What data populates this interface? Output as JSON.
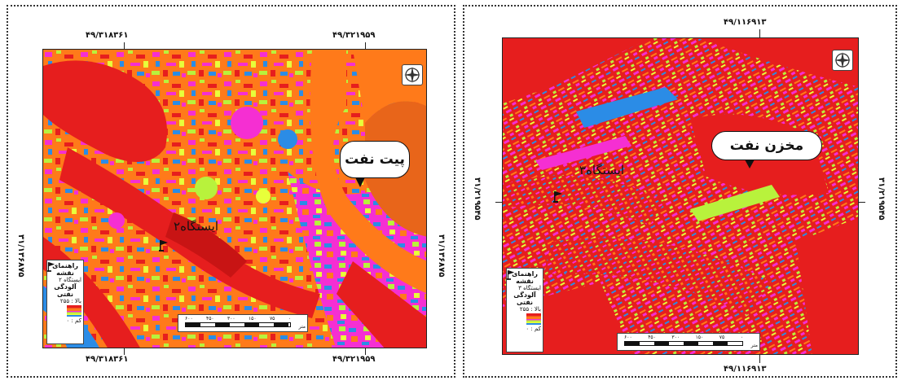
{
  "left_map": {
    "top_coords": [
      "۴۹/۳۱۸۳۶۱",
      "۴۹/۳۲۱۹۵۹"
    ],
    "bottom_coords": [
      "۴۹/۳۱۸۳۶۱",
      "۴۹/۳۲۱۹۵۹"
    ],
    "side_coord": "۳۱/۱۳۶۸۷۵",
    "callout_label": "پیت نفت",
    "station_label": "ایستگاه۲",
    "legend": {
      "title": "راهنمای نقشه",
      "station_item": "ایستگاه ۲",
      "heat_title": "آلودگی نفتی",
      "high_label": "بالا : ۲۵۵",
      "low_label": "کم : ۰"
    },
    "scale_labels": [
      "۰",
      "۷۵",
      "۱۵۰",
      "۳۰۰",
      "۴۵۰",
      "۶۰۰"
    ],
    "scale_unit": "متر"
  },
  "right_map": {
    "top_coord": "۴۹/۱۱۶۹۱۳",
    "bottom_coord": "۴۹/۱۱۶۹۱۳",
    "side_coord": "۳۱/۲۱۹۵۴۵",
    "callout_label": "مخزن نفت",
    "station_label": "ایستگاه۳",
    "legend": {
      "title": "راهنمای نقشه",
      "station_item": "ایستگاه ۳",
      "heat_title": "آلودگی نفتی",
      "high_label": "بالا : ۲۵۵",
      "low_label": "کم : ۰"
    },
    "scale_labels": [
      "۰",
      "۷۵",
      "۱۵۰",
      "۳۰۰",
      "۴۵۰",
      "۶۰۰"
    ],
    "scale_unit": "متر"
  },
  "icons": [
    "north-arrow-icon",
    "station-flag-icon"
  ],
  "colors": {
    "high": "#e61e1e",
    "medium_high": "#ff7a1a",
    "medium": "#f52fd2",
    "low": "#b8f23c",
    "lowest": "#2b8ce6"
  }
}
